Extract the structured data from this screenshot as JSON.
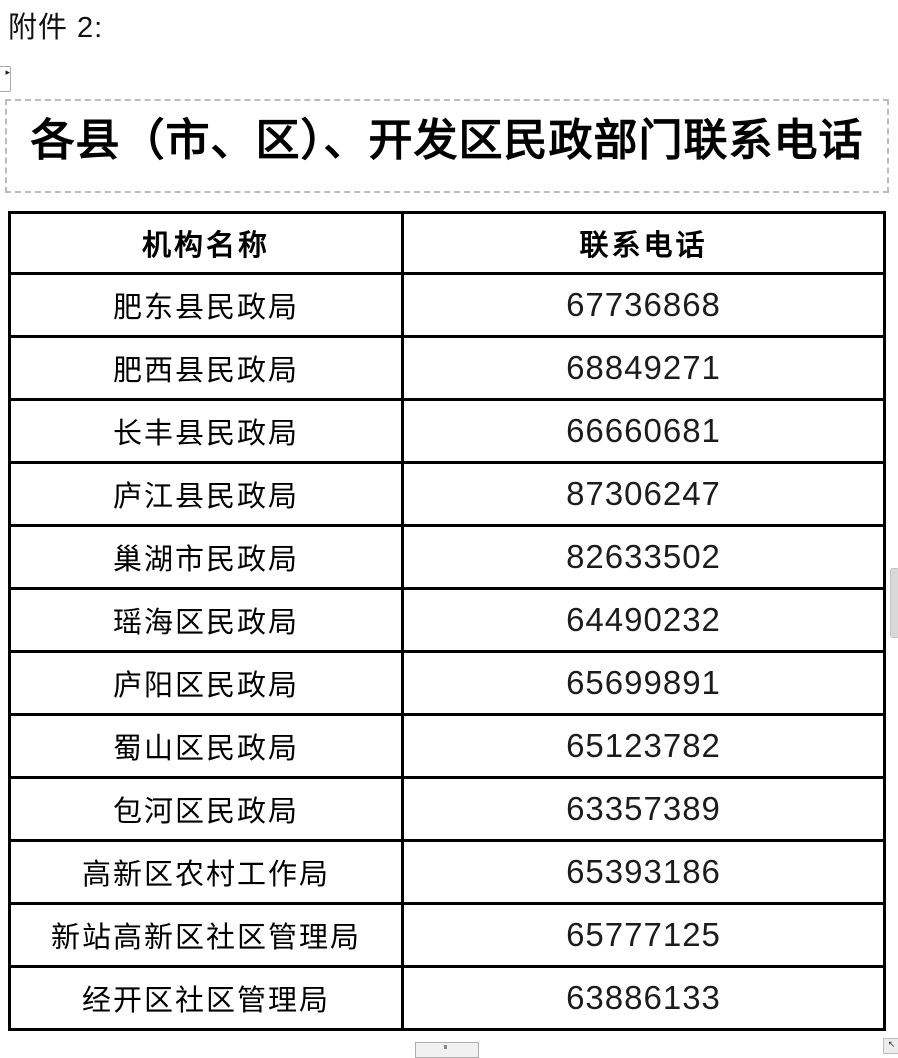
{
  "document": {
    "attachment_label": "附件 2:",
    "title": "各县（市、区）、开发区民政部门联系电话"
  },
  "table": {
    "headers": [
      "机构名称",
      "联系电话"
    ],
    "rows": [
      {
        "name": "肥东县民政局",
        "phone": "67736868"
      },
      {
        "name": "肥西县民政局",
        "phone": "68849271"
      },
      {
        "name": "长丰县民政局",
        "phone": "66660681"
      },
      {
        "name": "庐江县民政局",
        "phone": "87306247"
      },
      {
        "name": "巢湖市民政局",
        "phone": "82633502"
      },
      {
        "name": "瑶海区民政局",
        "phone": "64490232"
      },
      {
        "name": "庐阳区民政局",
        "phone": "65699891"
      },
      {
        "name": "蜀山区民政局",
        "phone": "65123782"
      },
      {
        "name": "包河区民政局",
        "phone": "63357389"
      },
      {
        "name": "高新区农村工作局",
        "phone": "65393186"
      },
      {
        "name": "新站高新区社区管理局",
        "phone": "65777125"
      },
      {
        "name": "经开区社区管理局",
        "phone": "63886133"
      }
    ]
  },
  "icons": {
    "anchor_arrow": "▸",
    "resize_arrow": "↖"
  },
  "colors": {
    "table_border": "#000000",
    "dashed_border": "#bcbcbc",
    "scrollbar_thumb": "#d9d9d9"
  }
}
